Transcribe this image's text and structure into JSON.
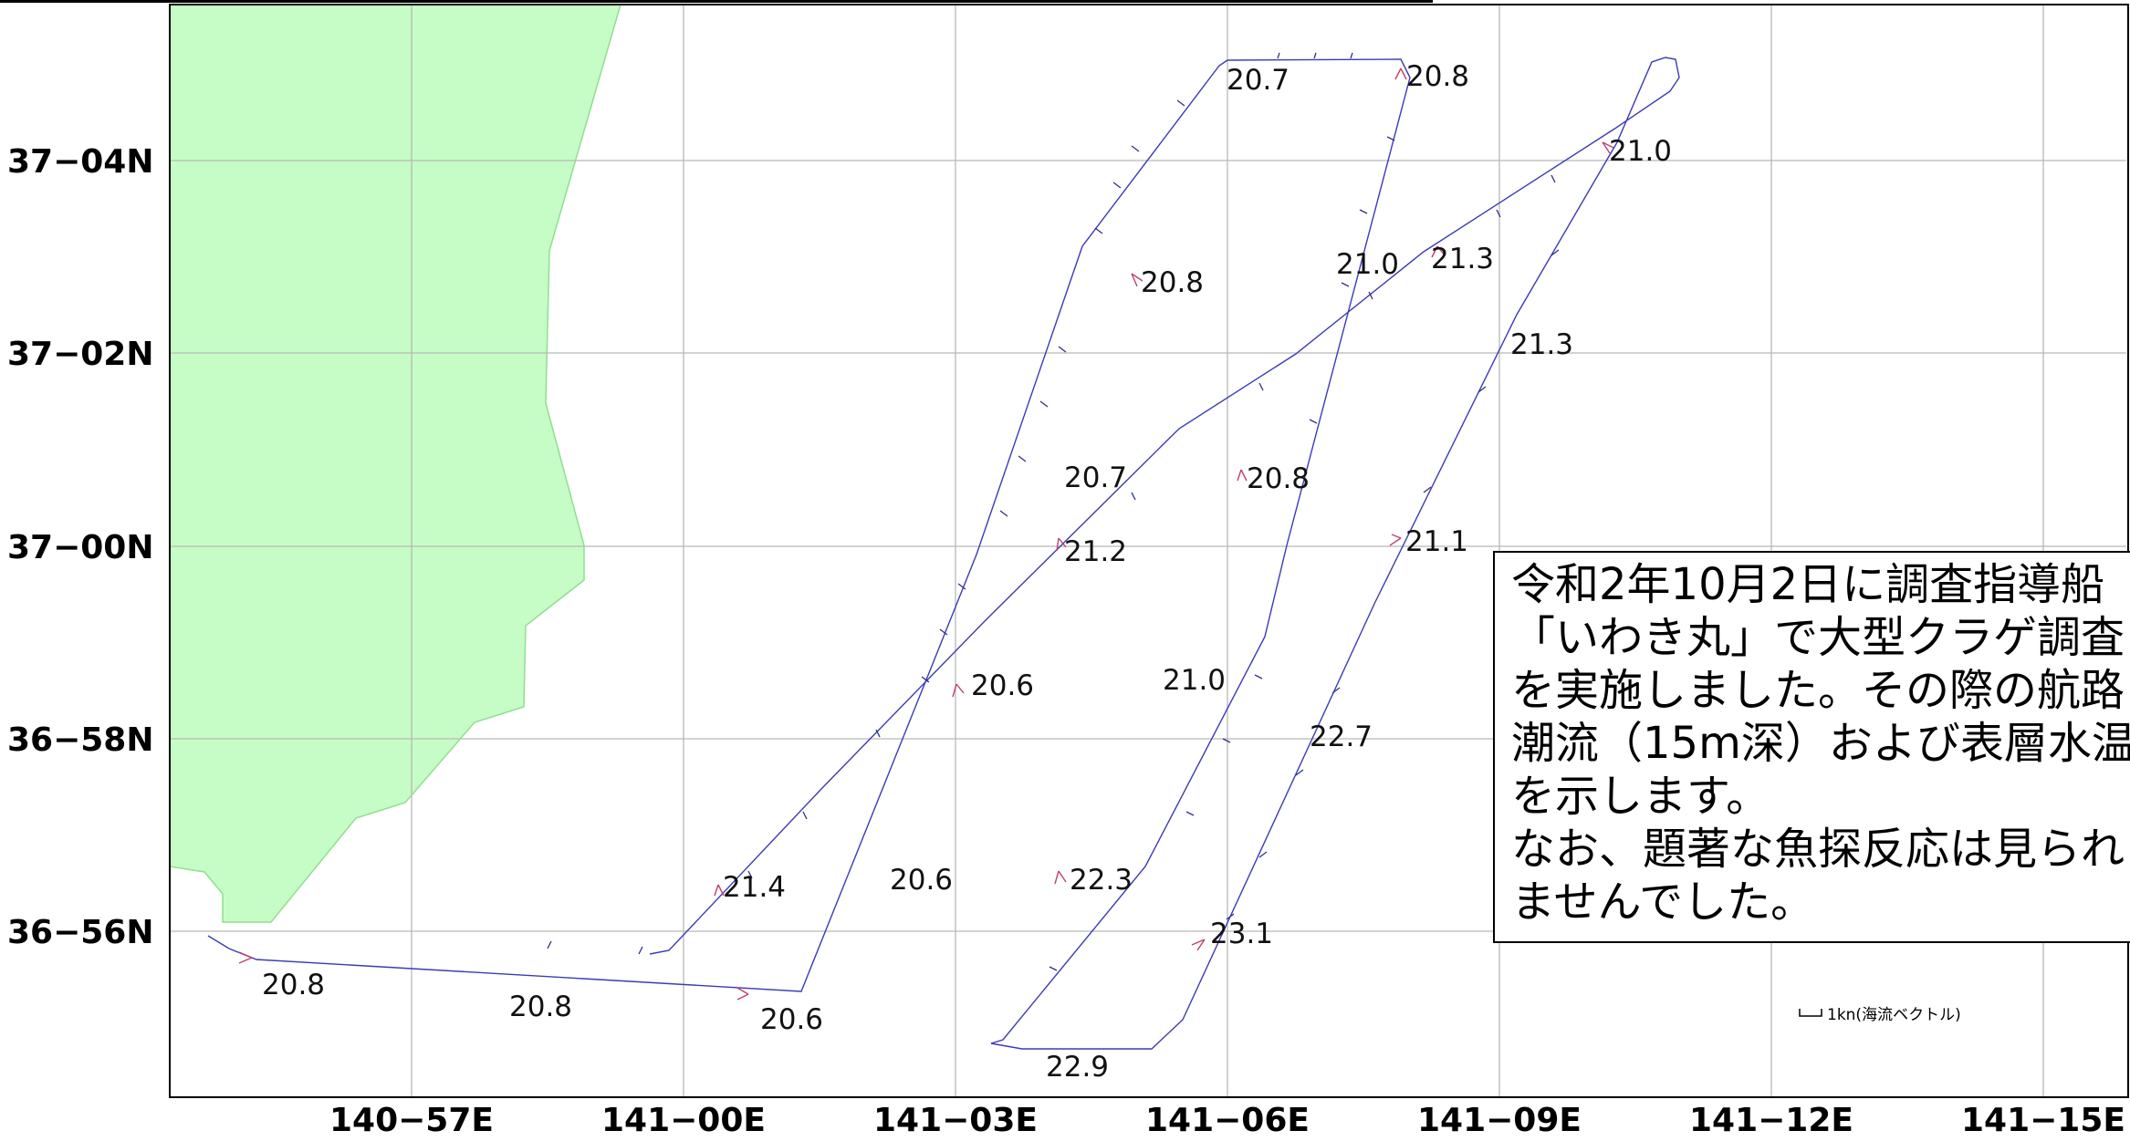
{
  "map": {
    "lat_labels": [
      "37−04N",
      "37−02N",
      "37−00N",
      "36−58N",
      "36−56N"
    ],
    "lon_labels": [
      "140−57E",
      "141−00E",
      "141−03E",
      "141−06E",
      "141−09E",
      "141−12E",
      "141−15E"
    ],
    "temperature_labels": [
      "20.7",
      "20.8",
      "21.0",
      "21.0",
      "21.3",
      "20.8",
      "21.3",
      "20.7",
      "20.8",
      "21.1",
      "21.2",
      "20.6",
      "21.0",
      "22.7",
      "21.4",
      "20.6",
      "22.3",
      "23.1",
      "20.8",
      "20.8",
      "20.6",
      "22.9"
    ],
    "legend_label": "1kn(海流ベクトル)",
    "note_lines": [
      "令和2年10月2日に調査指導船",
      "「いわき丸」で大型クラゲ調査",
      "を実施しました。その際の航路",
      "潮流（15m深）および表層水温",
      "を示します。",
      "なお、題著な魚探反応は見られ",
      "ませんでした。"
    ],
    "colors": {
      "land": "#c6fcc6",
      "land_outline": "#8ee08e",
      "track": "#3b3bb8",
      "current_vector": "#c0406a",
      "grid": "#b8b8b8"
    }
  }
}
